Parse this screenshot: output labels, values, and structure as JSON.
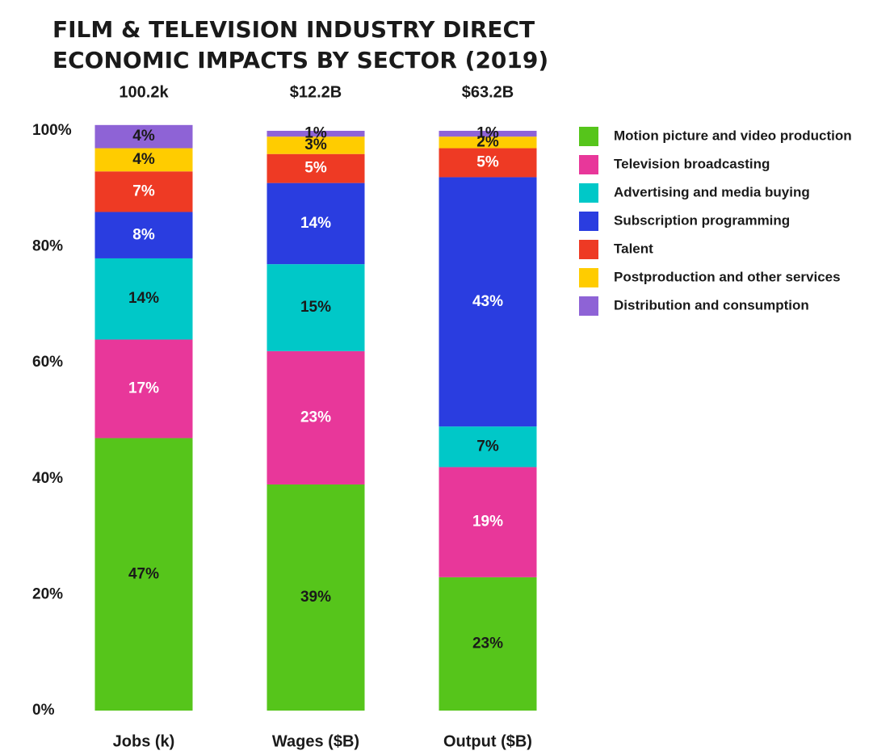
{
  "chart_data": {
    "type": "stacked_bar",
    "title": [
      "FILM & TELEVISION INDUSTRY DIRECT",
      "ECONOMIC IMPACTS BY SECTOR (2019)"
    ],
    "categories": [
      "Jobs (k)",
      "Wages ($B)",
      "Output ($B)"
    ],
    "column_headers": [
      "100.2k",
      "$12.2B",
      "$63.2B"
    ],
    "ylim": [
      0,
      100
    ],
    "yticks": [
      {
        "value": 0,
        "label": "0%"
      },
      {
        "value": 20,
        "label": "20%"
      },
      {
        "value": 40,
        "label": "40%"
      },
      {
        "value": 60,
        "label": "60%"
      },
      {
        "value": 80,
        "label": "80%"
      },
      {
        "value": 100,
        "label": "100%"
      }
    ],
    "series": [
      {
        "name": "Motion picture and video production",
        "color": "#56c51b",
        "label_color": "#1a1a1a",
        "values": [
          47,
          39,
          23
        ],
        "value_labels": [
          "47%",
          "39%",
          "23%"
        ]
      },
      {
        "name": "Television broadcasting",
        "color": "#e8379a",
        "label_color": "#ffffff",
        "values": [
          17,
          23,
          19
        ],
        "value_labels": [
          "17%",
          "23%",
          "19%"
        ]
      },
      {
        "name": "Advertising and media buying",
        "color": "#00c8c8",
        "label_color": "#1a1a1a",
        "values": [
          14,
          15,
          7
        ],
        "value_labels": [
          "14%",
          "15%",
          "7%"
        ]
      },
      {
        "name": "Subscription programming",
        "color": "#2a3de0",
        "label_color": "#ffffff",
        "values": [
          8,
          14,
          43
        ],
        "value_labels": [
          "8%",
          "14%",
          "43%"
        ]
      },
      {
        "name": "Talent",
        "color": "#ee3a24",
        "label_color": "#ffffff",
        "values": [
          7,
          5,
          5
        ],
        "value_labels": [
          "7%",
          "5%",
          "5%"
        ]
      },
      {
        "name": "Postproduction and other services",
        "color": "#ffcc00",
        "label_color": "#1a1a1a",
        "values": [
          4,
          3,
          2
        ],
        "value_labels": [
          "4%",
          "3%",
          "2%"
        ]
      },
      {
        "name": "Distribution and consumption",
        "color": "#8e63d6",
        "label_color": "#1a1a1a",
        "values": [
          4,
          1,
          1
        ],
        "value_labels": [
          "4%",
          "1%",
          "1%"
        ]
      }
    ]
  }
}
